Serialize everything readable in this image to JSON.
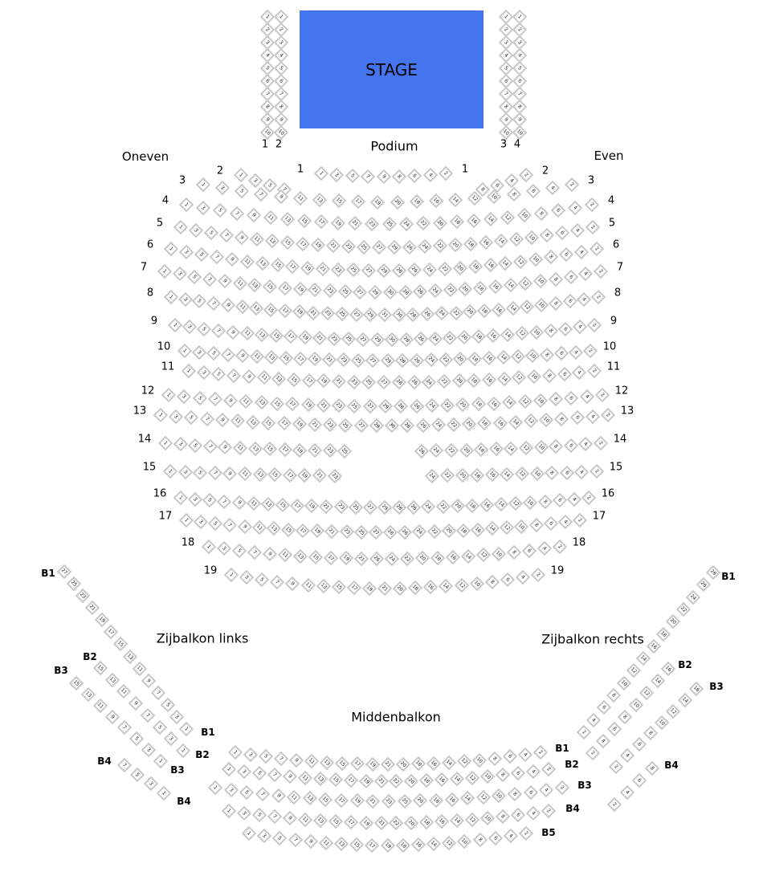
{
  "colors": {
    "stage": "#4575ee",
    "seat_border": "#c8c8c8"
  },
  "stage": {
    "label": "STAGE"
  },
  "labels": {
    "podium": "Podium",
    "odd": "Oneven",
    "even": "Even",
    "side_left": "Zijbalkon links",
    "side_right": "Zijbalkon rechts",
    "middle": "Middenbalkon"
  },
  "stage_side_columns": [
    {
      "label": "1",
      "seats": [
        1,
        2,
        3,
        4,
        5,
        6,
        7,
        8,
        9,
        10
      ]
    },
    {
      "label": "2",
      "seats": [
        1,
        2,
        3,
        4,
        5,
        6,
        7,
        8,
        9,
        10
      ]
    },
    {
      "label": "3",
      "seats": [
        1,
        2,
        3,
        4,
        5,
        6,
        7,
        8,
        9,
        10
      ]
    },
    {
      "label": "4",
      "seats": [
        1,
        2,
        3,
        4,
        5,
        6,
        7,
        8,
        9,
        10
      ]
    }
  ],
  "rows": [
    {
      "label": "1",
      "odd_max": 9,
      "even_max": 8
    },
    {
      "label": "2",
      "odd_max": 7,
      "even_max": 8
    },
    {
      "label": "3",
      "odd_max": 19,
      "even_max": 20
    },
    {
      "label": "4",
      "odd_max": 25,
      "even_max": 24
    },
    {
      "label": "5",
      "odd_max": 29,
      "even_max": 26
    },
    {
      "label": "6",
      "odd_max": 29,
      "even_max": 28
    },
    {
      "label": "7",
      "odd_max": 29,
      "even_max": 30
    },
    {
      "label": "8",
      "odd_max": 31,
      "even_max": 30
    },
    {
      "label": "9",
      "odd_max": 29,
      "even_max": 30
    },
    {
      "label": "10",
      "odd_max": 29,
      "even_max": 28
    },
    {
      "label": "11",
      "odd_max": 27,
      "even_max": 28
    },
    {
      "label": "12",
      "odd_max": 29,
      "even_max": 28
    },
    {
      "label": "13",
      "odd_max": 29,
      "even_max": 30
    },
    {
      "label": "14",
      "odd_max": 25,
      "even_max": 26
    },
    {
      "label": "15",
      "odd_max": 23,
      "even_max": 24
    },
    {
      "label": "16",
      "odd_max": 29,
      "even_max": 28
    },
    {
      "label": "17",
      "odd_max": 27,
      "even_max": 28
    },
    {
      "label": "18",
      "odd_max": 21,
      "even_max": 26
    },
    {
      "label": "19",
      "odd_max": 21,
      "even_max": 20
    }
  ],
  "side_left_rows": [
    {
      "label": "B1",
      "seats": [
        27,
        25,
        23,
        21,
        19,
        17,
        15,
        13,
        11,
        9,
        7,
        5,
        3,
        1
      ]
    },
    {
      "label": "B2",
      "seats": [
        15,
        13,
        11,
        9,
        7,
        5,
        3,
        1
      ]
    },
    {
      "label": "B3",
      "seats": [
        15,
        13,
        11,
        9,
        7,
        5,
        3,
        1
      ]
    },
    {
      "label": "B4",
      "seats": [
        7,
        5,
        3,
        1
      ]
    }
  ],
  "side_right_rows": [
    {
      "label": "B1",
      "seats": [
        2,
        4,
        6,
        8,
        10,
        12,
        14,
        16,
        18,
        20,
        22,
        24,
        26,
        28
      ]
    },
    {
      "label": "B2",
      "seats": [
        2,
        4,
        6,
        8,
        10,
        12,
        14,
        16
      ]
    },
    {
      "label": "B3",
      "seats": [
        2,
        4,
        6,
        8,
        10,
        12,
        14,
        16
      ]
    },
    {
      "label": "B4",
      "seats": [
        2,
        4,
        6,
        8
      ]
    }
  ],
  "middle_rows": [
    {
      "label": "B1",
      "odd_max": 21,
      "even_max": 20
    },
    {
      "label": "B2",
      "odd_max": 21,
      "even_max": 22
    },
    {
      "label": "B3",
      "odd_max": 25,
      "even_max": 20
    },
    {
      "label": "B4",
      "odd_max": 21,
      "even_max": 22
    },
    {
      "label": "B5",
      "odd_max": 19,
      "even_max": 18
    }
  ]
}
